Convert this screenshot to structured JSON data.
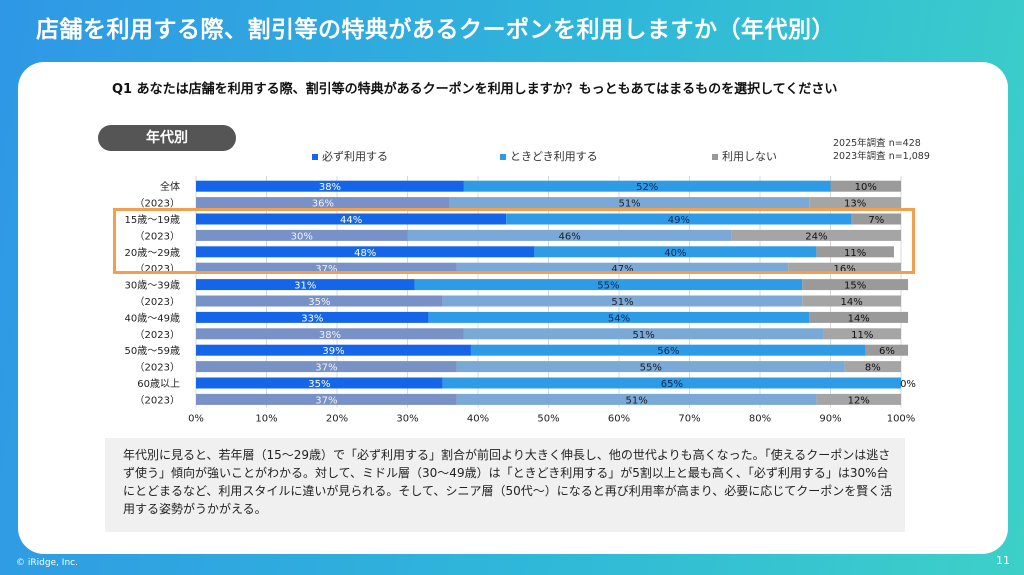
{
  "page": {
    "title": "店舗を利用する際、割引等の特典があるクーポンを利用しますか（年代別）",
    "question": "Q1 あなたは店舗を利用する際、割引等の特典があるクーポンを利用しますか？もっともあてはまるものを選択してください",
    "tag": "年代別",
    "sample_2025": "2025年調査 n=428",
    "sample_2023": "2023年調査 n=1,089",
    "summary": "年代別に見ると、若年層（15〜29歳）で「必ず利用する」割合が前回より大きく伸長し、他の世代よりも高くなった。「使えるクーポンは逃さず使う」傾向が強いことがわかる。対して、ミドル層（30〜49歳）は「ときどき利用する」が5割以上と最も高く、「必ず利用する」は30%台にとどまるなど、利用スタイルに違いが見られる。そして、シニア層（50代〜）になると再び利用率が高まり、必要に応じてクーポンを賢く活用する姿勢がうかがえる。",
    "copyright": "© iRidge, Inc.",
    "page_number": "11"
  },
  "colors": {
    "always_2025": "#1565e8",
    "sometimes_2025": "#2e9be6",
    "never_2025": "#9a9a9a",
    "always_2023": "#7891c6",
    "sometimes_2023": "#7aa9d8",
    "never_2023": "#a5a5a5",
    "highlight_border": "#f0a050"
  },
  "chart_data": {
    "type": "bar",
    "orientation": "horizontal-stacked-100",
    "categories": [
      "全体",
      "（2023）",
      "15歳〜19歳",
      "（2023）",
      "20歳〜29歳",
      "（2023）",
      "30歳〜39歳",
      "（2023）",
      "40歳〜49歳",
      "（2023）",
      "50歳〜59歳",
      "（2023）",
      "60歳以上",
      "（2023）"
    ],
    "series": [
      {
        "name": "必ず利用する",
        "values": [
          38,
          36,
          44,
          30,
          48,
          37,
          31,
          35,
          33,
          38,
          39,
          37,
          35,
          37
        ]
      },
      {
        "name": "ときどき利用する",
        "values": [
          52,
          51,
          49,
          46,
          40,
          47,
          55,
          51,
          54,
          51,
          56,
          55,
          65,
          51
        ]
      },
      {
        "name": "利用しない",
        "values": [
          10,
          13,
          7,
          24,
          11,
          16,
          15,
          14,
          14,
          11,
          6,
          8,
          0,
          12
        ]
      }
    ],
    "row_year": [
      "2025",
      "2023",
      "2025",
      "2023",
      "2025",
      "2023",
      "2025",
      "2023",
      "2025",
      "2023",
      "2025",
      "2023",
      "2025",
      "2023"
    ],
    "xlim": [
      0,
      100
    ],
    "xticks": [
      "0%",
      "10%",
      "20%",
      "30%",
      "40%",
      "50%",
      "60%",
      "70%",
      "80%",
      "90%",
      "100%"
    ],
    "legend_position": "top",
    "grid": true
  }
}
